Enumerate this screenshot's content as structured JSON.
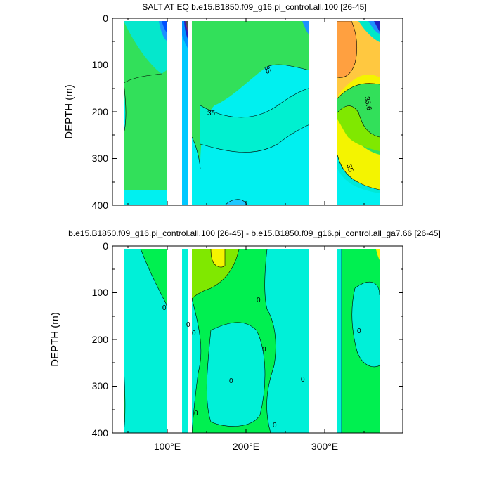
{
  "chart_data": [
    {
      "type": "contour",
      "title": "SALT AT EQ b.e15.B1850.f09_g16.pi_control.all.100 [26-45]",
      "xlabel": "",
      "ylabel": "DEPTH (m)",
      "xlim": [
        30,
        385
      ],
      "ylim": [
        400,
        0
      ],
      "yticks": [
        0,
        100,
        200,
        300,
        400
      ],
      "yticklabels": [
        "0",
        "100",
        "200",
        "300",
        "400"
      ],
      "contour_labels": [
        {
          "text": "35",
          "lon": 224,
          "depth": 95
        },
        {
          "text": "35",
          "lon": 140,
          "depth": 202
        },
        {
          "text": "35.6",
          "lon": 354,
          "depth": 180
        },
        {
          "text": "35",
          "lon": 342,
          "depth": 325
        }
      ],
      "land_gaps": [
        [
          98,
          118
        ],
        [
          128,
          130
        ],
        [
          278,
          313
        ]
      ]
    },
    {
      "type": "contour",
      "title": "b.e15.B1850.f09_g16.pi_control.all.100 [26-45] - b.e15.B1850.f09_g16.pi_control.all_ga7.66 [26-45]",
      "xlabel": "",
      "ylabel": "DEPTH (m)",
      "xlim": [
        30,
        385
      ],
      "ylim": [
        400,
        0
      ],
      "yticks": [
        0,
        100,
        200,
        300,
        400
      ],
      "yticklabels": [
        "0",
        "100",
        "200",
        "300",
        "400"
      ],
      "xticks": [
        100,
        200,
        300
      ],
      "xticklabels": [
        "100°E",
        "200°E",
        "300°E"
      ],
      "contour_labels": [
        {
          "text": "0",
          "lon": 93,
          "depth": 133
        },
        {
          "text": "0",
          "lon": 119,
          "depth": 170
        },
        {
          "text": "0",
          "lon": 128,
          "depth": 188
        },
        {
          "text": "0",
          "lon": 222,
          "depth": 118
        },
        {
          "text": "0",
          "lon": 218,
          "depth": 220
        },
        {
          "text": "0",
          "lon": 149,
          "depth": 290
        },
        {
          "text": "0",
          "lon": 273,
          "depth": 285
        },
        {
          "text": "0",
          "lon": 130,
          "depth": 360
        },
        {
          "text": "0",
          "lon": 235,
          "depth": 388
        },
        {
          "text": "0",
          "lon": 344,
          "depth": 183
        }
      ],
      "land_gaps": [
        [
          98,
          118
        ],
        [
          128,
          130
        ],
        [
          278,
          313
        ]
      ]
    }
  ]
}
